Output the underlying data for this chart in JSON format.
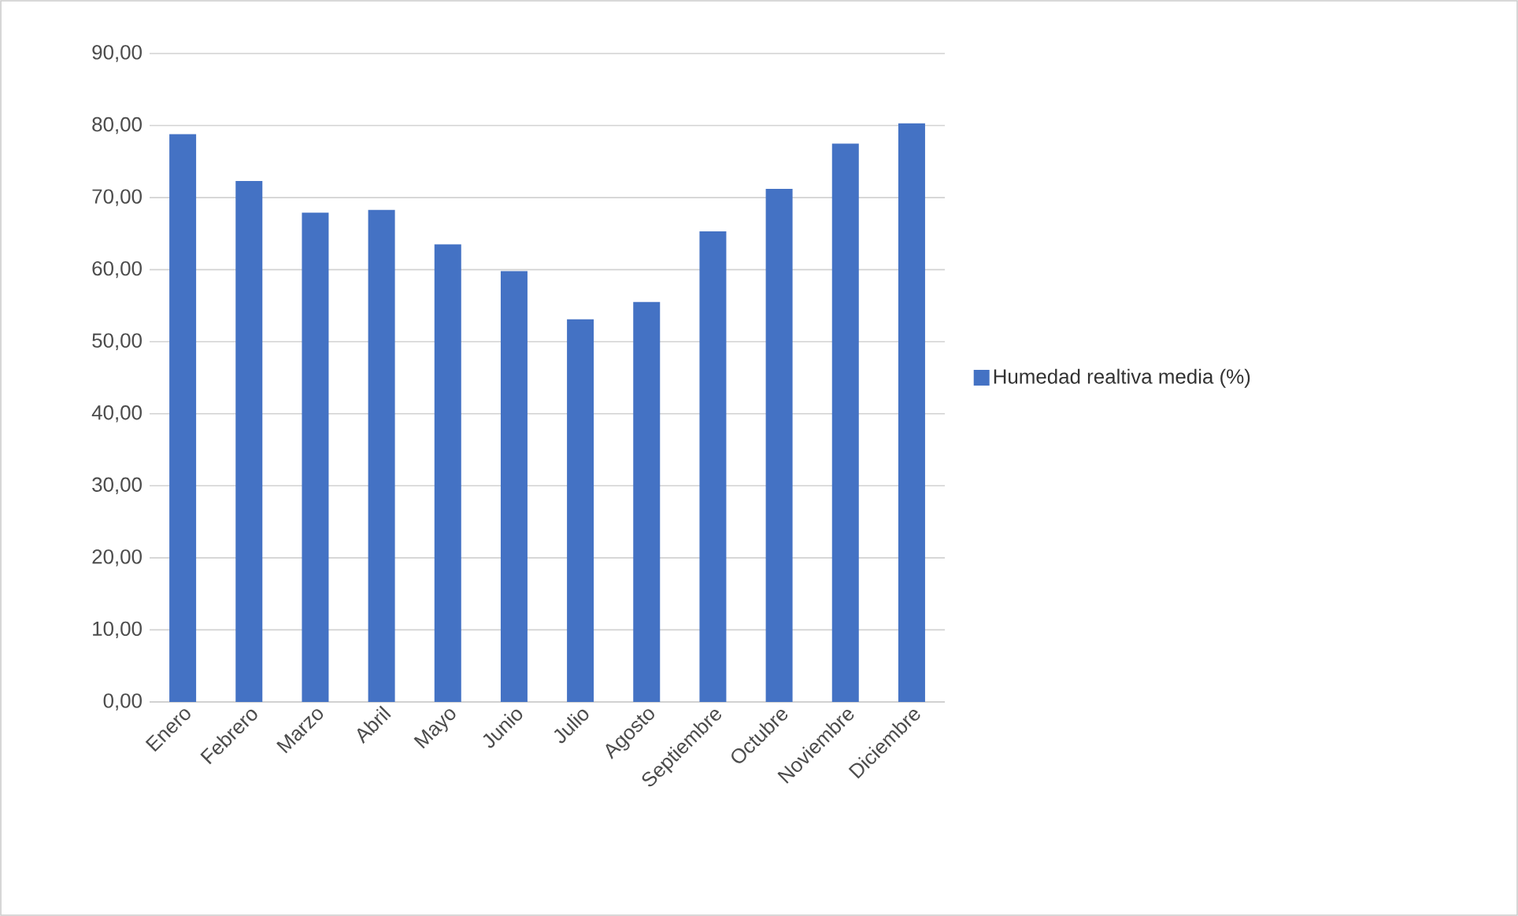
{
  "chart_data": {
    "type": "bar",
    "categories": [
      "Enero",
      "Febrero",
      "Marzo",
      "Abril",
      "Mayo",
      "Junio",
      "Julio",
      "Agosto",
      "Septiembre",
      "Octubre",
      "Noviembre",
      "Diciembre"
    ],
    "series": [
      {
        "name": "Humedad realtiva media (%)",
        "color": "#4472c4",
        "values": [
          78.8,
          72.3,
          67.9,
          68.3,
          63.5,
          59.8,
          53.1,
          55.5,
          65.3,
          71.2,
          77.5,
          80.3
        ]
      }
    ],
    "ylim": [
      0,
      90
    ],
    "yticks": [
      {
        "value": 0,
        "label": "0,00"
      },
      {
        "value": 10,
        "label": "10,00"
      },
      {
        "value": 20,
        "label": "20,00"
      },
      {
        "value": 30,
        "label": "30,00"
      },
      {
        "value": 40,
        "label": "40,00"
      },
      {
        "value": 50,
        "label": "50,00"
      },
      {
        "value": 60,
        "label": "60,00"
      },
      {
        "value": 70,
        "label": "70,00"
      },
      {
        "value": 80,
        "label": "80,00"
      },
      {
        "value": 90,
        "label": "90,00"
      }
    ],
    "grid": "y",
    "legend": "right"
  }
}
